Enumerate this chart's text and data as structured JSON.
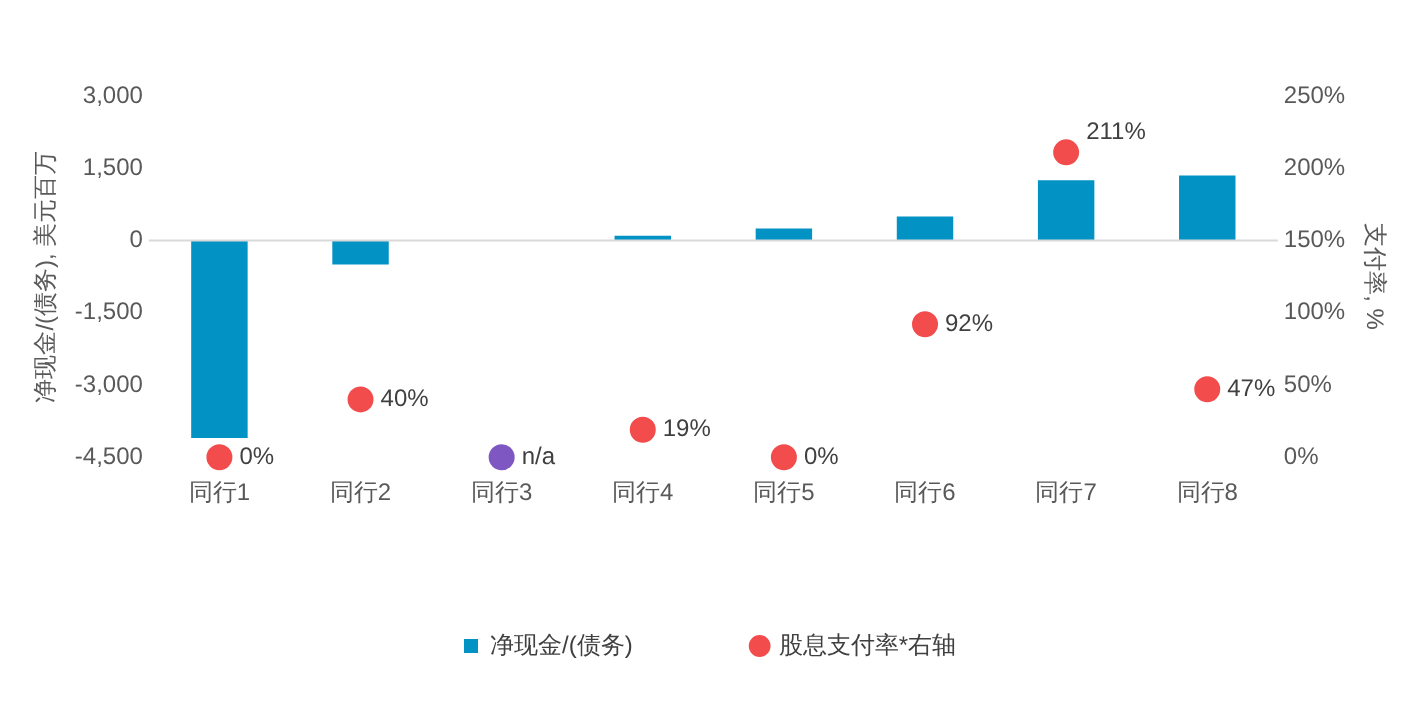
{
  "chart_data": {
    "type": "bar",
    "categories": [
      "同行1",
      "同行2",
      "同行3",
      "同行4",
      "同行5",
      "同行6",
      "同行7",
      "同行8"
    ],
    "series": [
      {
        "name": "净现金/(债务)",
        "color": "#0392c4",
        "values": [
          -4100,
          -500,
          0,
          100,
          250,
          500,
          1250,
          1350
        ]
      },
      {
        "name": "股息支付率*右轴",
        "type": "scatter",
        "axis": "y2",
        "color": "#f24c4c",
        "colors": [
          "#f24c4c",
          "#f24c4c",
          "#7e57c2",
          "#f24c4c",
          "#f24c4c",
          "#f24c4c",
          "#f24c4c",
          "#f24c4c"
        ],
        "values": [
          0,
          40,
          0,
          19,
          0,
          92,
          211,
          47
        ],
        "value_labels": [
          "0%",
          "40%",
          "n/a",
          "19%",
          "0%",
          "92%",
          "211%",
          "47%"
        ]
      }
    ],
    "ylabel": "净现金/(债务), 美元百万",
    "y2label": "支付率, %",
    "ylim": [
      -4500,
      3000
    ],
    "yticks": [
      {
        "value": -4500,
        "label": "-4,500"
      },
      {
        "value": -3000,
        "label": "-3,000"
      },
      {
        "value": -1500,
        "label": "-1,500"
      },
      0,
      {
        "value": 1500,
        "label": "1,500"
      },
      {
        "value": 3000,
        "label": "3,000"
      }
    ],
    "y2lim": [
      0,
      250
    ],
    "y2ticks": [
      {
        "value": 0,
        "label": "0%"
      },
      {
        "value": 50,
        "label": "50%"
      },
      {
        "value": 100,
        "label": "100%"
      },
      {
        "value": 150,
        "label": "150%"
      },
      {
        "value": 200,
        "label": "200%"
      },
      {
        "value": 250,
        "label": "250%"
      }
    ],
    "ref_lines": [
      {
        "axis": "y",
        "value": 0,
        "color": "#d9d9d9"
      }
    ],
    "grid": false,
    "legend": "bottom",
    "marker": "circle"
  }
}
